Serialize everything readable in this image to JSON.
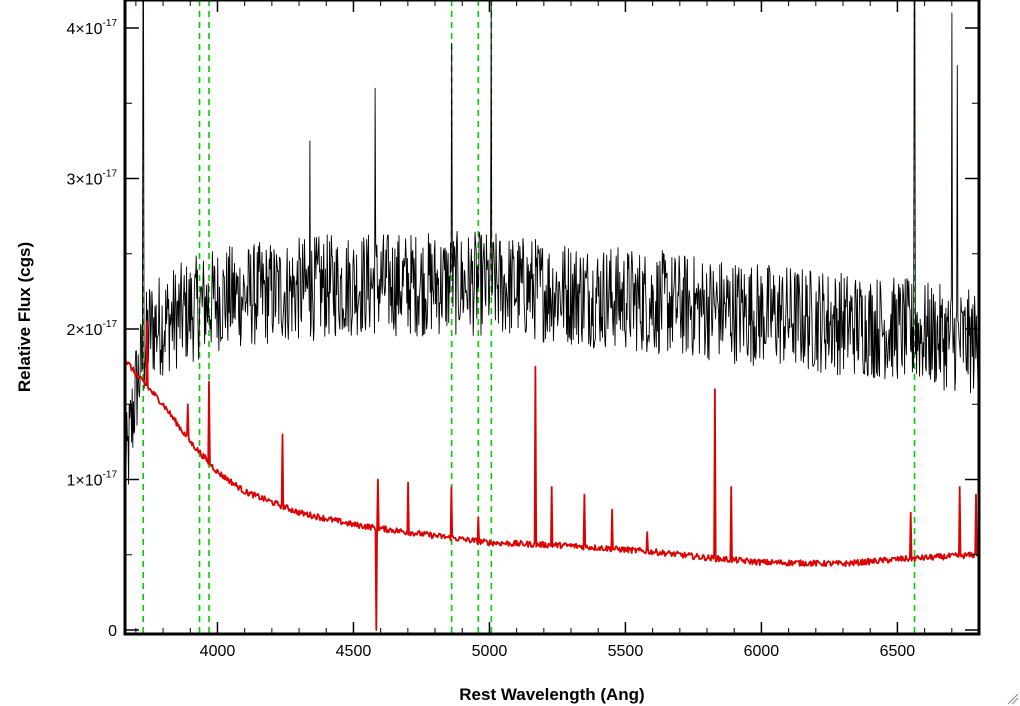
{
  "chart_data": {
    "type": "line",
    "title": "",
    "xlabel": "Rest Wavelength (Ang)",
    "ylabel": "Relative Flux (cgs)",
    "xlim": [
      3660,
      6800
    ],
    "ylim": [
      0,
      4e-17
    ],
    "x_ticks": [
      4000,
      4500,
      5000,
      5500,
      6000,
      6500
    ],
    "x_tick_labels": [
      "4000",
      "4500",
      "5000",
      "5500",
      "6000",
      "6500"
    ],
    "y_ticks": [
      {
        "value": 0,
        "label": "0",
        "exp": ""
      },
      {
        "value": 1e-17,
        "label": "1×10",
        "exp": "-17"
      },
      {
        "value": 2e-17,
        "label": "2×10",
        "exp": "-17"
      },
      {
        "value": 3e-17,
        "label": "3×10",
        "exp": "-17"
      },
      {
        "value": 4e-17,
        "label": "4×10",
        "exp": "-17"
      }
    ],
    "reference_lines_x": [
      3727,
      3934,
      3969,
      4861,
      4959,
      5007,
      6563
    ],
    "reference_line_style": {
      "color": "#00cc00",
      "dash": "dashed"
    },
    "series": [
      {
        "color": "#000000",
        "baseline": [
          [
            3660,
            1e-17
          ],
          [
            3700,
            1.6e-17
          ],
          [
            3750,
            2e-17
          ],
          [
            4000,
            2.2e-17
          ],
          [
            4500,
            2.3e-17
          ],
          [
            5000,
            2.3e-17
          ],
          [
            5500,
            2.2e-17
          ],
          [
            6000,
            2.1e-17
          ],
          [
            6500,
            2e-17
          ],
          [
            6800,
            1.9e-17
          ]
        ],
        "noise": 3.5e-18,
        "spikes": [
          [
            3727,
            4.2e-17
          ],
          [
            4861,
            3.9e-17
          ],
          [
            5007,
            4.2e-17
          ],
          [
            6563,
            4.2e-17
          ],
          [
            6720,
            3.75e-17
          ],
          [
            4340,
            3.25e-17
          ],
          [
            4580,
            3.6e-17
          ],
          [
            6700,
            4.1e-17
          ]
        ]
      },
      {
        "color": "#dd0000",
        "baseline": [
          [
            3660,
            1.8e-17
          ],
          [
            3700,
            1.7e-17
          ],
          [
            3800,
            1.5e-17
          ],
          [
            3900,
            1.25e-17
          ],
          [
            4000,
            1.05e-17
          ],
          [
            4100,
            9.2e-18
          ],
          [
            4300,
            7.8e-18
          ],
          [
            4500,
            7e-18
          ],
          [
            4700,
            6.5e-18
          ],
          [
            5000,
            5.8e-18
          ],
          [
            5300,
            5.6e-18
          ],
          [
            5600,
            5.2e-18
          ],
          [
            5800,
            4.8e-18
          ],
          [
            6000,
            4.5e-18
          ],
          [
            6300,
            4.4e-18
          ],
          [
            6500,
            4.7e-18
          ],
          [
            6800,
            5e-18
          ]
        ],
        "noise": 2e-19,
        "spikes": [
          [
            3740,
            2.05e-17
          ],
          [
            3890,
            1.5e-17
          ],
          [
            3970,
            1.65e-17
          ],
          [
            4240,
            1.3e-17
          ],
          [
            4590,
            1e-17
          ],
          [
            4700,
            9.8e-18
          ],
          [
            4860,
            9.5e-18
          ],
          [
            4960,
            7.5e-18
          ],
          [
            5170,
            1.75e-17
          ],
          [
            5230,
            9.5e-18
          ],
          [
            5350,
            9e-18
          ],
          [
            5450,
            8e-18
          ],
          [
            5580,
            6.5e-18
          ],
          [
            5830,
            1.6e-17
          ],
          [
            5890,
            9.5e-18
          ],
          [
            6550,
            7.8e-18
          ],
          [
            6730,
            9.5e-18
          ],
          [
            6790,
            9e-18
          ]
        ],
        "dips": [
          [
            4585,
            0.0
          ]
        ]
      }
    ]
  }
}
